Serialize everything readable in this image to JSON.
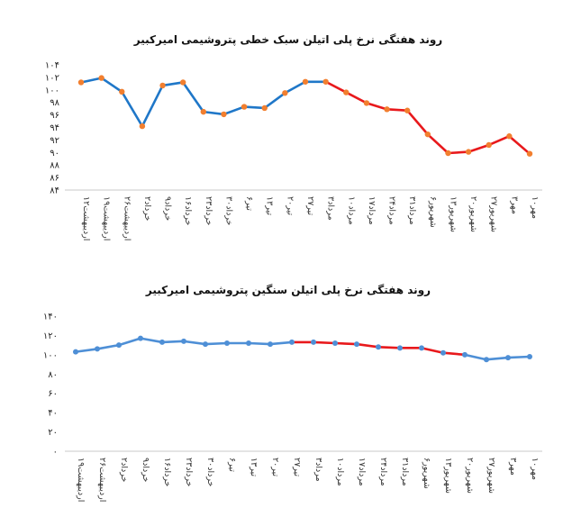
{
  "chart_data": [
    {
      "type": "line",
      "title": "روند هفتگی نرخ پلی اتیلن سبک خطی پتروشیمی امیرکبیر",
      "categories": [
        "۱۲اردیبهشت",
        "۱۹اردیبهشت",
        "۲۶اردیبهشت",
        "۲خرداد",
        "۹خرداد",
        "۱۶خرداد",
        "۲۳خرداد",
        "۳۰خرداد",
        "۶تیر",
        "۱۳تیر",
        "۲۰تیر",
        "۲۷تیر",
        "۳مرداد",
        "۱۰مرداد",
        "۱۷مرداد",
        "۲۴مرداد",
        "۳۱مرداد",
        "۶شهریور",
        "۱۳شهریور",
        "۲۰شهریور",
        "۲۷شهریور",
        "۳مهر",
        "۱۰مهر"
      ],
      "yticks": [
        "۸۴",
        "۸۶",
        "۸۸",
        "۹۰",
        "۹۲",
        "۹۴",
        "۹۶",
        "۹۸",
        "۱۰۰",
        "۱۰۲",
        "۱۰۴"
      ],
      "series": [
        {
          "values": [
            101.2,
            101.9,
            99.7,
            94.2,
            100.7,
            101.2,
            96.5,
            96.1,
            97.3,
            97.1,
            99.5,
            101.3,
            101.3,
            99.6,
            97.9,
            96.9,
            96.7,
            92.9,
            89.9,
            90.1,
            91.2,
            92.6,
            89.8
          ]
        }
      ],
      "ylim": [
        84,
        104
      ],
      "grid": false,
      "colors": {
        "rising_segment": "#1f77c8",
        "falling_segment": "#e8191c",
        "marker": "#f27f2f"
      },
      "red_from_index": 12
    },
    {
      "type": "line",
      "title": "روند هفتگی نرخ پلی اتیلن سنگین پتروشیمی امیرکبیر",
      "categories": [
        "۱۹اردیبهشت",
        "۲۶اردیبهشت",
        "۲خرداد",
        "۹خرداد",
        "۱۶خرداد",
        "۲۳خرداد",
        "۳۰خرداد",
        "۶تیر",
        "۱۳تیر",
        "۲۰تیر",
        "۲۷تیر",
        "۳مرداد",
        "۱۰مرداد",
        "۱۷مرداد",
        "۲۴مرداد",
        "۳۱مرداد",
        "۶شهریور",
        "۱۳شهریور",
        "۲۰شهریور",
        "۲۷شهریور",
        "۳مهر",
        "۱۰مهر"
      ],
      "yticks": [
        "۰",
        "۲۰",
        "۴۰",
        "۶۰",
        "۸۰",
        "۱۰۰",
        "۱۲۰",
        "۱۴۰"
      ],
      "series": [
        {
          "values": [
            103,
            106,
            110,
            117,
            113,
            114,
            111,
            112,
            112,
            111,
            113,
            113,
            112,
            111,
            108,
            107,
            107,
            102,
            100,
            95,
            97,
            98
          ]
        }
      ],
      "ylim": [
        0,
        140
      ],
      "grid": false,
      "colors": {
        "rising_segment": "#4e8fd6",
        "falling_segment": "#e8191c",
        "marker": "#4e8fd6"
      },
      "red_from_index": 10,
      "red_to_index": 18
    }
  ]
}
